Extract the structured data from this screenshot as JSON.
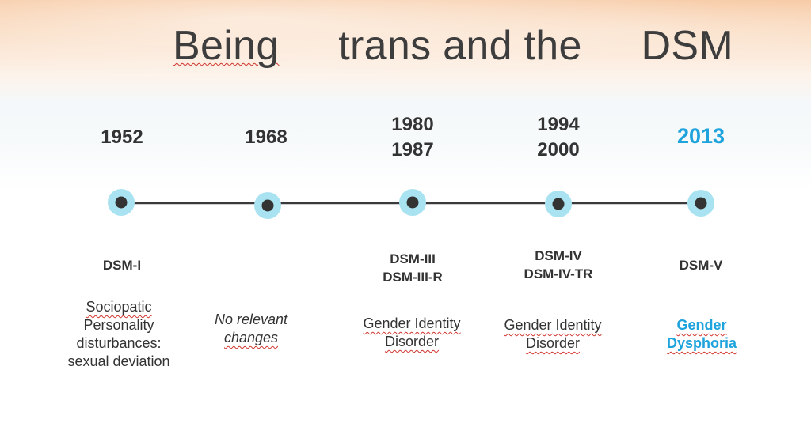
{
  "slide": {
    "title_words": [
      "Being",
      "trans and the",
      "DSM"
    ],
    "accent_color": "#1fa3dc",
    "text_color": "#333333"
  },
  "timeline": [
    {
      "years": [
        "1952"
      ],
      "edition": [
        "DSM-I"
      ],
      "description": [
        "Sociopatic",
        "Personality",
        "disturbances:",
        "sexual deviation"
      ]
    },
    {
      "years": [
        "1968"
      ],
      "edition": [],
      "description": [
        "No relevant",
        "changes"
      ]
    },
    {
      "years": [
        "1980",
        "1987"
      ],
      "edition": [
        "DSM-III",
        "DSM-III-R"
      ],
      "description": [
        "Gender Identity",
        "Disorder"
      ]
    },
    {
      "years": [
        "1994",
        "2000"
      ],
      "edition": [
        "DSM-IV",
        "DSM-IV-TR"
      ],
      "description": [
        "Gender Identity",
        "Disorder"
      ]
    },
    {
      "years": [
        "2013"
      ],
      "edition": [
        "DSM-V"
      ],
      "description": [
        "Gender",
        "Dysphoria"
      ]
    }
  ]
}
